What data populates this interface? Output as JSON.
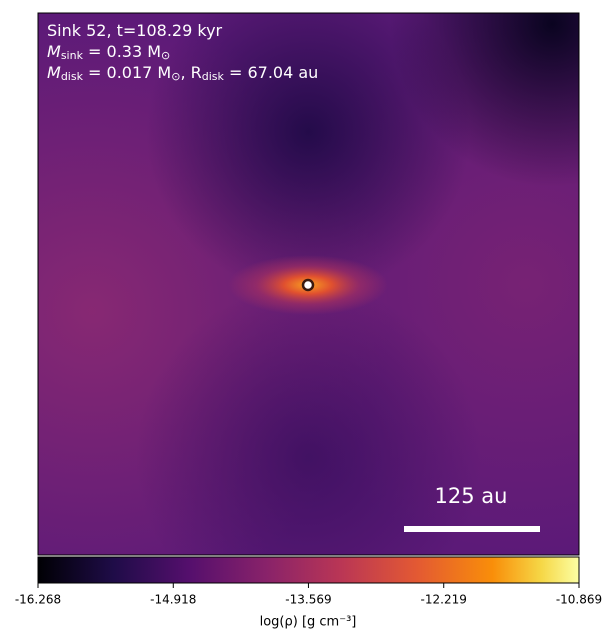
{
  "chart_data": {
    "type": "image",
    "annotations": [
      [
        {
          "text": "Sink 52, t=108.29 kyr"
        }
      ],
      [
        {
          "text": "M"
        },
        {
          "sub": "sink"
        },
        {
          "text": " = 0.33 M"
        },
        {
          "sub": "⊙"
        }
      ],
      [
        {
          "text": "M"
        },
        {
          "sub": "disk"
        },
        {
          "text": " = 0.017 M"
        },
        {
          "sub": "⊙"
        },
        {
          "text": ", R"
        },
        {
          "sub": "disk"
        },
        {
          "text": " = 67.04 au"
        }
      ]
    ],
    "scalebar": "125 au",
    "colorbar": {
      "label": "log(ρ) [g cm⁻³]",
      "colormap": "inferno",
      "clim": [
        -16.268,
        -10.869
      ],
      "ticks": [
        -16.268,
        -14.918,
        -13.569,
        -12.219,
        -10.869
      ]
    }
  }
}
